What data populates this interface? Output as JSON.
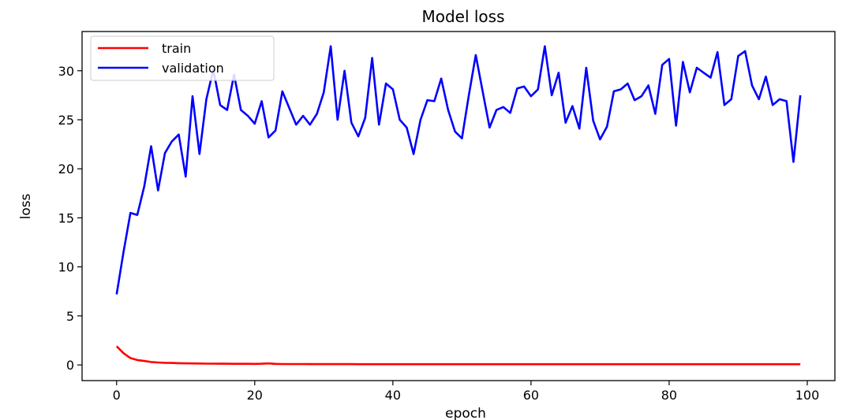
{
  "chart_data": {
    "type": "line",
    "title": "Model loss",
    "xlabel": "epoch",
    "ylabel": "loss",
    "xlim": [
      -5,
      104
    ],
    "ylim": [
      -1.6,
      34
    ],
    "xticks": [
      0,
      20,
      40,
      60,
      80,
      100
    ],
    "yticks": [
      0,
      5,
      10,
      15,
      20,
      25,
      30
    ],
    "grid": false,
    "legend": "top-left",
    "series": [
      {
        "name": "train",
        "color": "#ff0000",
        "values": [
          1.9,
          1.2,
          0.7,
          0.5,
          0.4,
          0.3,
          0.25,
          0.22,
          0.2,
          0.18,
          0.16,
          0.15,
          0.14,
          0.13,
          0.13,
          0.12,
          0.12,
          0.11,
          0.11,
          0.11,
          0.1,
          0.12,
          0.15,
          0.1,
          0.09,
          0.09,
          0.09,
          0.09,
          0.08,
          0.08,
          0.08,
          0.08,
          0.08,
          0.08,
          0.08,
          0.07,
          0.07,
          0.07,
          0.07,
          0.07,
          0.07,
          0.07,
          0.07,
          0.07,
          0.07,
          0.07,
          0.07,
          0.07,
          0.07,
          0.07,
          0.07,
          0.07,
          0.07,
          0.07,
          0.07,
          0.07,
          0.07,
          0.07,
          0.07,
          0.07,
          0.07,
          0.07,
          0.07,
          0.07,
          0.07,
          0.07,
          0.07,
          0.07,
          0.07,
          0.07,
          0.07,
          0.07,
          0.07,
          0.07,
          0.07,
          0.07,
          0.07,
          0.07,
          0.07,
          0.07,
          0.07,
          0.07,
          0.07,
          0.07,
          0.07,
          0.07,
          0.07,
          0.07,
          0.07,
          0.07,
          0.07,
          0.07,
          0.07,
          0.07,
          0.07,
          0.07,
          0.07,
          0.07,
          0.07,
          0.07
        ]
      },
      {
        "name": "validation",
        "color": "#0000ff",
        "values": [
          7.2,
          11.5,
          15.5,
          15.3,
          18.2,
          22.3,
          17.8,
          21.6,
          22.8,
          23.5,
          19.2,
          27.4,
          21.5,
          27.1,
          30.1,
          26.5,
          26.0,
          29.6,
          26.0,
          25.4,
          24.6,
          26.9,
          23.2,
          23.9,
          27.9,
          26.2,
          24.5,
          25.4,
          24.5,
          25.6,
          27.8,
          32.5,
          25.0,
          30.0,
          24.7,
          23.3,
          25.2,
          31.3,
          24.5,
          28.7,
          28.1,
          25.0,
          24.2,
          21.5,
          25.0,
          27.0,
          26.9,
          29.2,
          26.0,
          23.8,
          23.1,
          27.5,
          31.6,
          27.9,
          24.2,
          26.0,
          26.3,
          25.7,
          28.2,
          28.4,
          27.4,
          28.1,
          32.5,
          27.5,
          29.8,
          24.7,
          26.4,
          24.1,
          30.3,
          24.9,
          23.0,
          24.3,
          27.9,
          28.1,
          28.7,
          27.0,
          27.4,
          28.5,
          25.6,
          30.6,
          31.2,
          24.4,
          30.9,
          27.8,
          30.3,
          29.8,
          29.3,
          31.9,
          26.5,
          27.1,
          31.5,
          32.0,
          28.5,
          27.1,
          29.4,
          26.5,
          27.1,
          26.9,
          20.7,
          27.5
        ]
      }
    ]
  }
}
